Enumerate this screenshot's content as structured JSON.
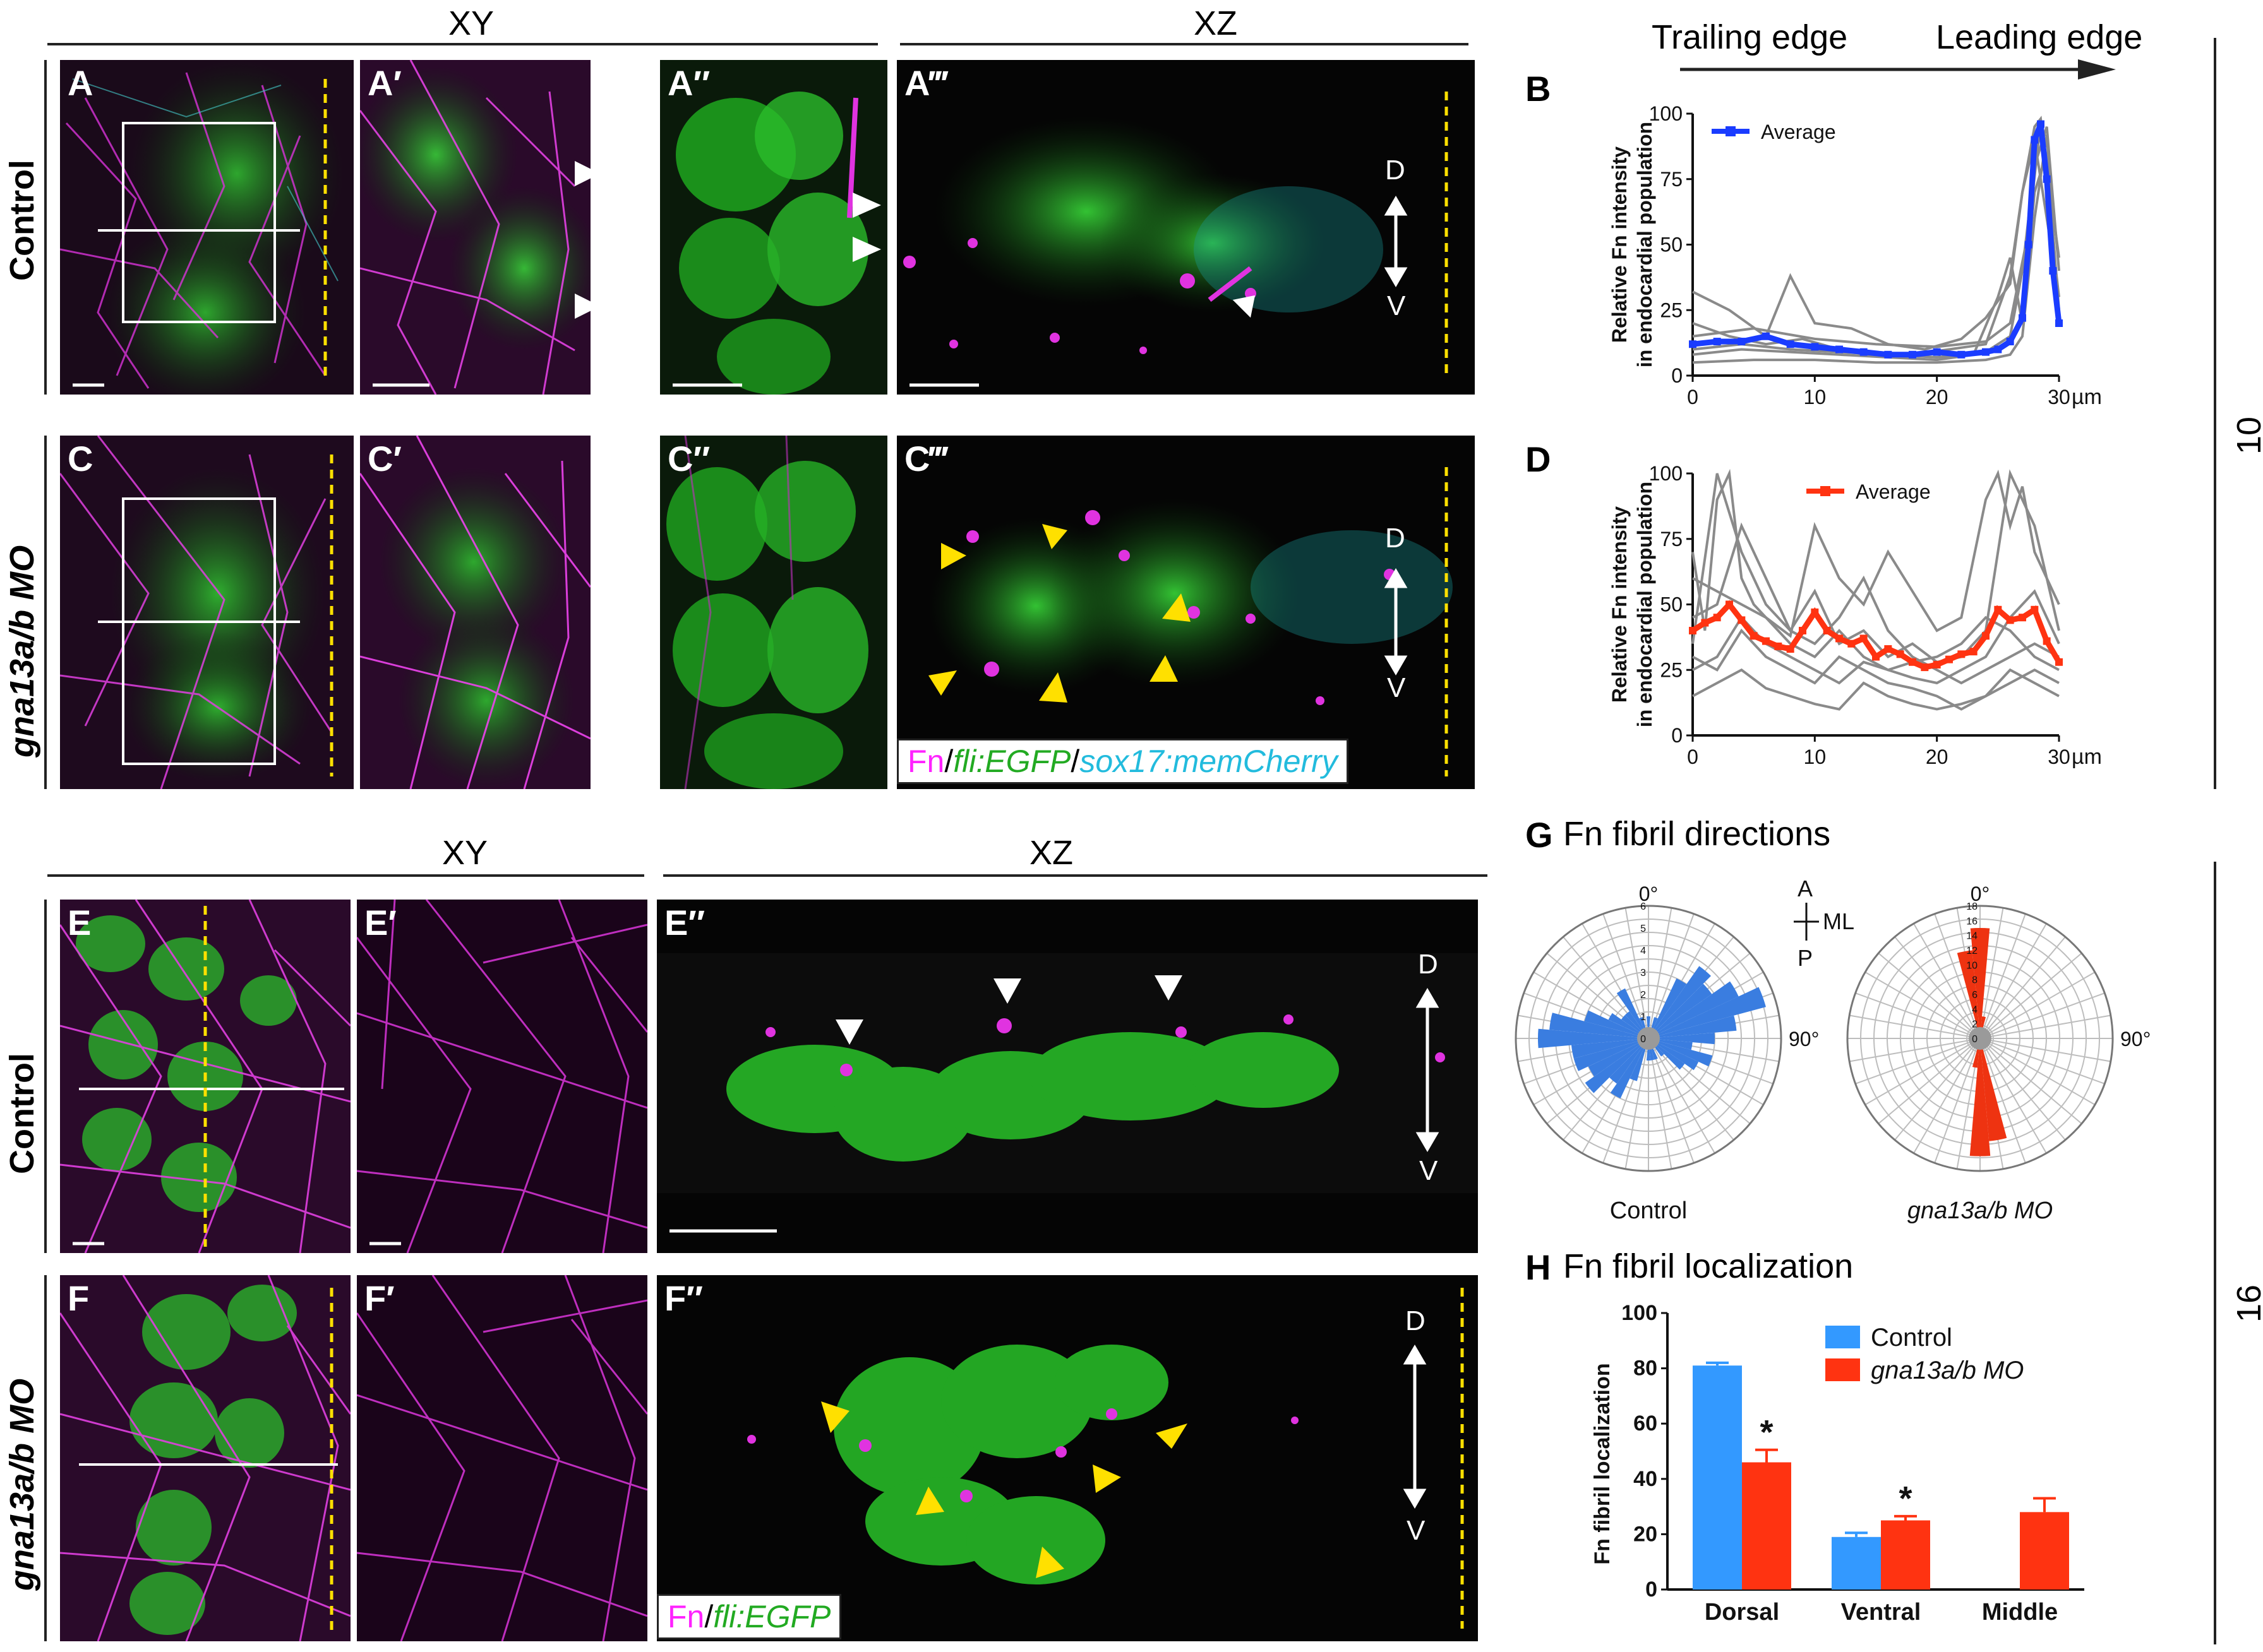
{
  "headers": {
    "xy_top": "XY",
    "xz_top": "XZ",
    "xy_bottom": "XY",
    "xz_bottom": "XZ"
  },
  "row_labels": {
    "control_top": "Control",
    "mo_top": "gna13a/b MO",
    "control_bottom": "Control",
    "mo_bottom": "gna13a/b MO"
  },
  "panel_labels": {
    "A": "A",
    "A1": "A′",
    "A2": "A″",
    "A3": "A‴",
    "C": "C",
    "C1": "C′",
    "C2": "C″",
    "C3": "C‴",
    "E": "E",
    "E1": "E′",
    "E2": "E″",
    "F": "F",
    "F1": "F′",
    "F2": "F″",
    "B": "B",
    "D": "D",
    "G": "G",
    "H": "H"
  },
  "axis_dv": {
    "d": "D",
    "v": "V"
  },
  "legend_top": {
    "fn": "Fn",
    "sep1": "/",
    "fli": "fli:EGFP",
    "sep2": "/",
    "sox": "sox17:memCherry"
  },
  "legend_bottom": {
    "fn": "Fn",
    "sep1": "/",
    "fli": "fli:EGFP"
  },
  "edge_arrow": {
    "trailing": "Trailing edge",
    "leading": "Leading edge"
  },
  "time_labels": {
    "top": "10 s",
    "bottom": "16 s"
  },
  "colors": {
    "fn": "#ff33ff",
    "egfp": "#33dd33",
    "sox": "#33ccdd",
    "control": "#3399ff",
    "mo": "#ff3311",
    "gray": "#888888",
    "blue_avg": "#1a3cff"
  },
  "chart_data": [
    {
      "id": "B",
      "type": "line",
      "ylabel_line1": "Relative Fn intensity",
      "ylabel_line2": "in endocardial population",
      "x_unit": "µm",
      "xlim": [
        0,
        30
      ],
      "ylim": [
        0,
        100
      ],
      "xticks": [
        0,
        10,
        20,
        30
      ],
      "yticks": [
        0,
        25,
        50,
        75,
        100
      ],
      "legend": "Average",
      "average": {
        "x": [
          0,
          2,
          4,
          6,
          8,
          10,
          12,
          14,
          16,
          18,
          20,
          22,
          24,
          25,
          26,
          27,
          27.5,
          28,
          28.5,
          29,
          29.5,
          30
        ],
        "y": [
          12,
          13,
          13,
          15,
          12,
          11,
          10,
          9,
          8,
          8,
          9,
          8,
          9,
          10,
          13,
          22,
          50,
          90,
          96,
          75,
          40,
          20
        ]
      },
      "individuals": [
        {
          "x": [
            0,
            3,
            6,
            8,
            10,
            13,
            16,
            19,
            22,
            24,
            26,
            27,
            28,
            28.5,
            29,
            30
          ],
          "y": [
            32,
            25,
            15,
            38,
            20,
            18,
            12,
            10,
            14,
            22,
            35,
            70,
            95,
            98,
            80,
            45
          ]
        },
        {
          "x": [
            0,
            3,
            6,
            9,
            12,
            15,
            18,
            21,
            24,
            26,
            27,
            28,
            29,
            30
          ],
          "y": [
            20,
            15,
            12,
            14,
            10,
            9,
            8,
            10,
            12,
            38,
            70,
            90,
            60,
            30
          ]
        },
        {
          "x": [
            0,
            4,
            8,
            12,
            16,
            20,
            23,
            25,
            26,
            27,
            28,
            29,
            30
          ],
          "y": [
            8,
            10,
            9,
            8,
            7,
            6,
            8,
            30,
            45,
            20,
            70,
            85,
            25
          ]
        },
        {
          "x": [
            0,
            4,
            8,
            12,
            16,
            20,
            24,
            26,
            27,
            28,
            29,
            30
          ],
          "y": [
            10,
            12,
            10,
            9,
            8,
            7,
            9,
            15,
            40,
            80,
            95,
            40
          ]
        },
        {
          "x": [
            0,
            5,
            10,
            15,
            20,
            24,
            26,
            27,
            28,
            29,
            30
          ],
          "y": [
            5,
            6,
            6,
            5,
            5,
            6,
            8,
            15,
            60,
            92,
            20
          ]
        },
        {
          "x": [
            0,
            5,
            10,
            15,
            20,
            24,
            26,
            27.5,
            28.5,
            29.5,
            30
          ],
          "y": [
            15,
            18,
            14,
            12,
            11,
            13,
            20,
            55,
            97,
            50,
            30
          ]
        }
      ]
    },
    {
      "id": "D",
      "type": "line",
      "ylabel_line1": "Relative Fn intensity",
      "ylabel_line2": "in endocardial population",
      "x_unit": "µm",
      "xlim": [
        0,
        30
      ],
      "ylim": [
        0,
        100
      ],
      "xticks": [
        0,
        10,
        20,
        30
      ],
      "yticks": [
        0,
        25,
        50,
        75,
        100
      ],
      "legend": "Average",
      "average": {
        "x": [
          0,
          1,
          2,
          3,
          4,
          5,
          6,
          7,
          8,
          9,
          10,
          11,
          12,
          13,
          14,
          15,
          16,
          17,
          18,
          19,
          20,
          21,
          22,
          23,
          24,
          25,
          26,
          27,
          28,
          29,
          30
        ],
        "y": [
          40,
          43,
          45,
          50,
          44,
          38,
          36,
          34,
          33,
          40,
          47,
          40,
          37,
          35,
          37,
          30,
          33,
          31,
          28,
          26,
          27,
          29,
          31,
          32,
          38,
          48,
          44,
          45,
          48,
          36,
          28
        ]
      },
      "individuals": [
        {
          "x": [
            0,
            1,
            2,
            3,
            4,
            5,
            6,
            8,
            10,
            12,
            14,
            16,
            18,
            20,
            22,
            24,
            25,
            26,
            27,
            28,
            29,
            30
          ],
          "y": [
            70,
            40,
            90,
            100,
            60,
            50,
            45,
            38,
            80,
            60,
            50,
            70,
            55,
            40,
            45,
            90,
            100,
            80,
            95,
            70,
            60,
            50
          ]
        },
        {
          "x": [
            0,
            2,
            4,
            6,
            8,
            10,
            12,
            14,
            16,
            18,
            20,
            22,
            24,
            26,
            28,
            30
          ],
          "y": [
            35,
            100,
            70,
            50,
            40,
            55,
            35,
            40,
            30,
            35,
            28,
            30,
            40,
            100,
            80,
            40
          ]
        },
        {
          "x": [
            0,
            2,
            4,
            6,
            8,
            10,
            12,
            14,
            16,
            18,
            20,
            22,
            24,
            26,
            28,
            30
          ],
          "y": [
            25,
            30,
            45,
            35,
            30,
            25,
            20,
            28,
            25,
            22,
            20,
            25,
            30,
            45,
            55,
            35
          ]
        },
        {
          "x": [
            0,
            2,
            4,
            6,
            8,
            10,
            12,
            14,
            16,
            18,
            20,
            22,
            24,
            26,
            28,
            30
          ],
          "y": [
            45,
            50,
            80,
            60,
            40,
            35,
            45,
            60,
            40,
            30,
            25,
            20,
            25,
            30,
            35,
            30
          ]
        },
        {
          "x": [
            0,
            2,
            4,
            6,
            8,
            10,
            12,
            14,
            16,
            18,
            20,
            22,
            24,
            26,
            28,
            30
          ],
          "y": [
            15,
            20,
            25,
            18,
            15,
            12,
            10,
            20,
            15,
            12,
            10,
            12,
            15,
            20,
            25,
            20
          ]
        },
        {
          "x": [
            0,
            2,
            4,
            6,
            8,
            10,
            12,
            14,
            16,
            18,
            20,
            22,
            24,
            26,
            28,
            30
          ],
          "y": [
            30,
            25,
            40,
            30,
            25,
            20,
            30,
            25,
            20,
            18,
            15,
            10,
            15,
            25,
            20,
            15
          ]
        },
        {
          "x": [
            0,
            2,
            4,
            6,
            8,
            10,
            12,
            14,
            16,
            18,
            20,
            22,
            24,
            26,
            28,
            30
          ],
          "y": [
            60,
            55,
            50,
            45,
            35,
            30,
            40,
            30,
            25,
            28,
            30,
            35,
            45,
            40,
            30,
            25
          ]
        }
      ]
    },
    {
      "id": "G",
      "type": "polar-bar",
      "title": "Fn fibril directions",
      "orientation_labels": {
        "a": "A",
        "p": "P",
        "ml": "ML"
      },
      "angle_labels": {
        "top": "0°",
        "right": "90°"
      },
      "charts": [
        {
          "name": "Control",
          "rmax": 6,
          "rticks": [
            0,
            1,
            2,
            3,
            4,
            5,
            6
          ],
          "color": "#3a7de0",
          "bins_deg": [
            0,
            10,
            20,
            30,
            40,
            50,
            60,
            70,
            80,
            90,
            100,
            110,
            120,
            130,
            140,
            150,
            160,
            170,
            180,
            190,
            200,
            210,
            220,
            230,
            240,
            250,
            260,
            270,
            280,
            290,
            300,
            310,
            320,
            330,
            340,
            350
          ],
          "counts": [
            1,
            0.5,
            1,
            3,
            4,
            3.5,
            4.5,
            5.5,
            4,
            3,
            2,
            3,
            2.5,
            2,
            1,
            0.5,
            1,
            1,
            1,
            0.5,
            2,
            3,
            2.5,
            3.5,
            3,
            3.5,
            3.5,
            5,
            4.5,
            3,
            2,
            1.5,
            1.5,
            2.5,
            1,
            0.5
          ]
        },
        {
          "name": "gna13a/b MO",
          "rmax": 18,
          "rticks": [
            0,
            2,
            4,
            6,
            8,
            10,
            12,
            14,
            16,
            18
          ],
          "color": "#ee3311",
          "bins_deg": [
            0,
            10,
            20,
            170,
            180,
            190,
            350
          ],
          "counts": [
            15,
            3,
            1,
            14,
            16,
            4,
            12
          ]
        }
      ]
    },
    {
      "id": "H",
      "type": "bar",
      "title": "Fn fibril localization",
      "ylabel": "Fn fibril localization",
      "categories": [
        "Dorsal",
        "Ventral",
        "Middle"
      ],
      "ylim": [
        0,
        100
      ],
      "yticks": [
        0,
        20,
        40,
        60,
        80,
        100
      ],
      "series": [
        {
          "name": "Control",
          "values": [
            81,
            19,
            0
          ],
          "errors": [
            1,
            1.5,
            0
          ],
          "color": "#3399ff"
        },
        {
          "name": "gna13a/b MO",
          "values": [
            46,
            25,
            28
          ],
          "errors": [
            4.5,
            1.5,
            5
          ],
          "color": "#ff3311"
        }
      ],
      "significance": [
        "*",
        "*",
        ""
      ]
    }
  ]
}
